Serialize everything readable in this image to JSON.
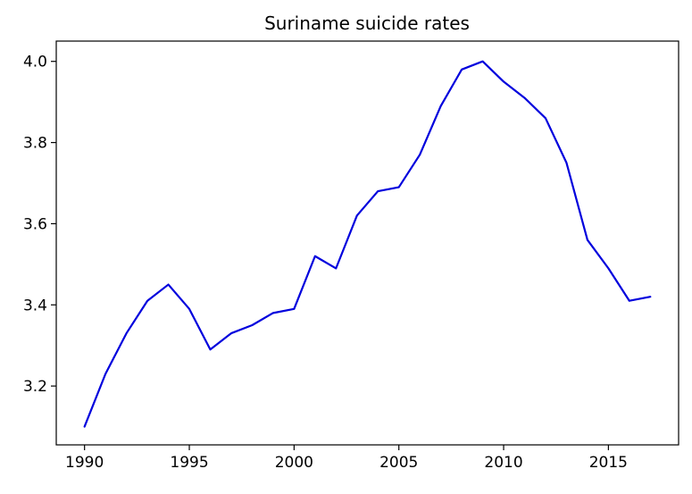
{
  "chart_data": {
    "type": "line",
    "title": "Suriname suicide rates",
    "xlabel": "",
    "ylabel": "",
    "x": [
      1990,
      1991,
      1992,
      1993,
      1994,
      1995,
      1996,
      1997,
      1998,
      1999,
      2000,
      2001,
      2002,
      2003,
      2004,
      2005,
      2006,
      2007,
      2008,
      2009,
      2010,
      2011,
      2012,
      2013,
      2014,
      2015,
      2016,
      2017
    ],
    "series": [
      {
        "values": [
          3.1,
          3.23,
          3.33,
          3.41,
          3.45,
          3.39,
          3.29,
          3.33,
          3.35,
          3.38,
          3.39,
          3.52,
          3.49,
          3.62,
          3.68,
          3.69,
          3.77,
          3.89,
          3.98,
          4.0,
          3.95,
          3.91,
          3.86,
          3.75,
          3.56,
          3.49,
          3.41,
          3.42
        ],
        "color": "#0000dd"
      }
    ],
    "xlim": [
      1988.65,
      2018.35
    ],
    "ylim": [
      3.055,
      4.05
    ],
    "xticks": [
      1990,
      1995,
      2000,
      2005,
      2010,
      2015
    ],
    "yticks": [
      3.2,
      3.4,
      3.6,
      3.8,
      4.0
    ],
    "xtick_labels": [
      "1990",
      "1995",
      "2000",
      "2005",
      "2010",
      "2015"
    ],
    "ytick_labels": [
      "3.2",
      "3.4",
      "3.6",
      "3.8",
      "4.0"
    ],
    "grid": false,
    "legend": "none"
  }
}
